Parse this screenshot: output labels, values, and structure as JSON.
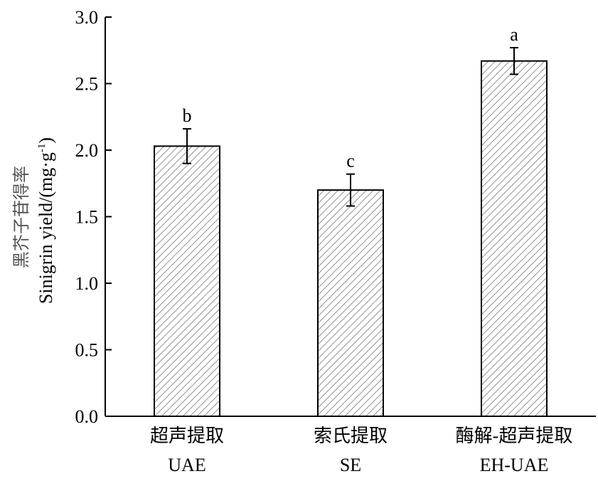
{
  "chart_data": {
    "type": "bar",
    "categories": [
      "超声提取",
      "索氏提取",
      "酶解-超声提取"
    ],
    "categories_en": [
      "UAE",
      "SE",
      "EH-UAE"
    ],
    "values": [
      2.03,
      1.7,
      2.67
    ],
    "errors": [
      0.13,
      0.12,
      0.1
    ],
    "significance": [
      "b",
      "c",
      "a"
    ],
    "ylabel_zh": "黑芥子苷得率",
    "ylabel_en": "Sinigrin yield/(mg·g",
    "ylabel_unit_sup": "-1",
    "ylabel_close": ")",
    "ylim": [
      0,
      3.0
    ],
    "yticks": [
      "0.0",
      "0.5",
      "1.0",
      "1.5",
      "2.0",
      "2.5",
      "3.0"
    ],
    "ytick_values": [
      0,
      0.5,
      1.0,
      1.5,
      2.0,
      2.5,
      3.0
    ],
    "pattern": "hatched"
  }
}
